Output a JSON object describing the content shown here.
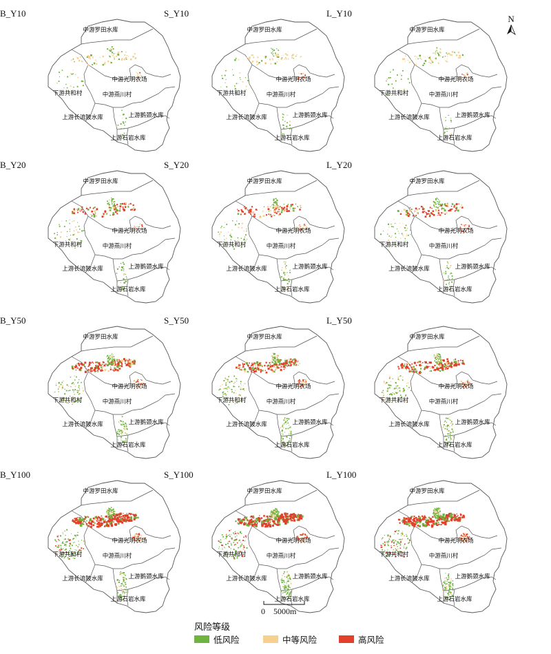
{
  "panels": [
    {
      "id": "B_Y10",
      "title": "B_Y10",
      "level": 0
    },
    {
      "id": "S_Y10",
      "title": "S_Y10",
      "level": 0
    },
    {
      "id": "L_Y10",
      "title": "L_Y10",
      "level": 0
    },
    {
      "id": "B_Y20",
      "title": "B_Y20",
      "level": 1
    },
    {
      "id": "S_Y20",
      "title": "S_Y20",
      "level": 1
    },
    {
      "id": "L_Y20",
      "title": "L_Y20",
      "level": 1
    },
    {
      "id": "B_Y50",
      "title": "B_Y50",
      "level": 2
    },
    {
      "id": "S_Y50",
      "title": "S_Y50",
      "level": 2
    },
    {
      "id": "L_Y50",
      "title": "L_Y50",
      "level": 2
    },
    {
      "id": "B_Y100",
      "title": "B_Y100",
      "level": 3
    },
    {
      "id": "S_Y100",
      "title": "S_Y100",
      "level": 3
    },
    {
      "id": "L_Y100",
      "title": "L_Y100",
      "level": 3
    }
  ],
  "region_labels": [
    "中游罗田水库",
    "中游光明农场",
    "下游共和村",
    "中游燕川村",
    "上游鹅颈水库",
    "上游长流陂水库",
    "上游石岩水库"
  ],
  "north_arrow": {
    "label": "N"
  },
  "scale_bar": {
    "zero": "0",
    "distance": "5000m"
  },
  "legend": {
    "title": "风险等级",
    "items": [
      {
        "label": "低风险",
        "color": "#6fb43f"
      },
      {
        "label": "中等风险",
        "color": "#f7cf8e"
      },
      {
        "label": "高风险",
        "color": "#e2402b"
      }
    ]
  },
  "colors": {
    "outline": "#555555",
    "low": "#6fb43f",
    "medium": "#f7cf8e",
    "high": "#e2402b"
  }
}
